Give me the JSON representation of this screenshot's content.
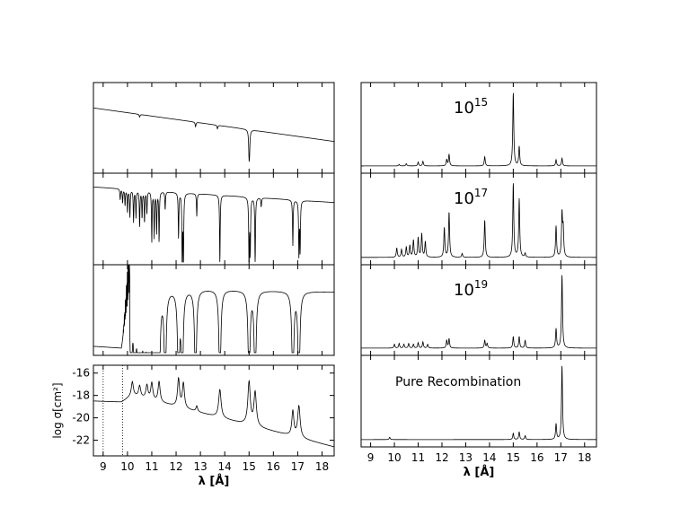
{
  "chart_data": [
    {
      "panel": "left-1",
      "type": "line",
      "xlim": [
        8.6,
        18.5
      ],
      "xlabel": "",
      "ylabel": "",
      "continuum": [
        [
          8.6,
          0.72
        ],
        [
          18.5,
          0.35
        ]
      ],
      "lines": [
        [
          15.0,
          0.25,
          0.04
        ],
        [
          15.02,
          0.18,
          0.04
        ],
        [
          12.8,
          0.05,
          0.04
        ],
        [
          13.7,
          0.04,
          0.04
        ],
        [
          10.5,
          0.03,
          0.04
        ]
      ]
    },
    {
      "panel": "left-2",
      "type": "line",
      "xlim": [
        8.6,
        18.5
      ],
      "continuum": [
        [
          8.6,
          0.85
        ],
        [
          18.5,
          0.68
        ]
      ],
      "lines": [
        [
          9.7,
          0.12,
          0.03
        ],
        [
          9.8,
          0.15,
          0.03
        ],
        [
          9.9,
          0.18,
          0.03
        ],
        [
          10.0,
          0.25,
          0.03
        ],
        [
          10.1,
          0.3,
          0.03
        ],
        [
          10.25,
          0.35,
          0.03
        ],
        [
          10.35,
          0.3,
          0.03
        ],
        [
          10.5,
          0.4,
          0.03
        ],
        [
          10.6,
          0.3,
          0.03
        ],
        [
          10.7,
          0.35,
          0.03
        ],
        [
          10.8,
          0.25,
          0.03
        ],
        [
          11.0,
          0.55,
          0.03
        ],
        [
          11.1,
          0.5,
          0.03
        ],
        [
          11.2,
          0.45,
          0.03
        ],
        [
          11.3,
          0.55,
          0.03
        ],
        [
          11.55,
          0.2,
          0.03
        ],
        [
          12.1,
          0.5,
          0.03
        ],
        [
          12.25,
          0.75,
          0.03
        ],
        [
          12.3,
          0.8,
          0.03
        ],
        [
          12.85,
          0.25,
          0.03
        ],
        [
          13.8,
          0.75,
          0.03
        ],
        [
          15.0,
          0.85,
          0.03
        ],
        [
          15.05,
          0.6,
          0.03
        ],
        [
          15.25,
          0.78,
          0.03
        ],
        [
          15.5,
          0.1,
          0.03
        ],
        [
          16.8,
          0.5,
          0.03
        ],
        [
          17.05,
          0.6,
          0.03
        ],
        [
          17.1,
          0.55,
          0.03
        ]
      ]
    },
    {
      "panel": "left-3",
      "type": "line",
      "xlim": [
        8.6,
        18.5
      ],
      "continuum": [
        [
          8.6,
          0.1
        ],
        [
          9.75,
          0.08
        ],
        [
          10.1,
          0.75
        ],
        [
          18.5,
          0.7
        ]
      ]
    },
    {
      "panel": "left-4",
      "type": "line",
      "xlim": [
        8.6,
        18.5
      ],
      "ylim": [
        -23.4,
        -15.3
      ],
      "xlabel": "λ [Å]",
      "ylabel": "log σ[cm²]",
      "xticks": [
        "9",
        "10",
        "11",
        "12",
        "13",
        "14",
        "15",
        "16",
        "17",
        "18"
      ],
      "yticks": [
        "-16",
        "-18",
        "-20",
        "-22"
      ],
      "dotted_lines_x": [
        9.0,
        9.8
      ],
      "continuum": [
        [
          8.6,
          -18.5
        ],
        [
          9.75,
          -18.6
        ],
        [
          10.2,
          -18.0
        ],
        [
          18.5,
          -22.6
        ]
      ]
    },
    {
      "panel": "right-1",
      "type": "line",
      "xlim": [
        8.6,
        18.5
      ],
      "annotation": "10",
      "annotation_sup": "15",
      "lines": [
        [
          15.0,
          0.95
        ],
        [
          15.25,
          0.25
        ],
        [
          12.3,
          0.15
        ],
        [
          12.2,
          0.08
        ],
        [
          13.8,
          0.12
        ],
        [
          16.8,
          0.08
        ],
        [
          17.05,
          0.1
        ],
        [
          11.0,
          0.05
        ],
        [
          11.2,
          0.06
        ],
        [
          10.5,
          0.03
        ],
        [
          10.2,
          0.02
        ]
      ]
    },
    {
      "panel": "right-2",
      "type": "line",
      "xlim": [
        8.6,
        18.5
      ],
      "annotation": "10",
      "annotation_sup": "17",
      "lines": [
        [
          10.1,
          0.12
        ],
        [
          10.3,
          0.1
        ],
        [
          10.5,
          0.13
        ],
        [
          10.65,
          0.15
        ],
        [
          10.8,
          0.22
        ],
        [
          11.0,
          0.25
        ],
        [
          11.15,
          0.3
        ],
        [
          11.3,
          0.2
        ],
        [
          12.1,
          0.38
        ],
        [
          12.3,
          0.58
        ],
        [
          12.85,
          0.05
        ],
        [
          13.8,
          0.48
        ],
        [
          15.0,
          0.95
        ],
        [
          15.25,
          0.75
        ],
        [
          15.5,
          0.05
        ],
        [
          16.8,
          0.4
        ],
        [
          17.05,
          0.55
        ],
        [
          17.1,
          0.35
        ]
      ]
    },
    {
      "panel": "right-3",
      "type": "line",
      "xlim": [
        8.6,
        18.5
      ],
      "annotation": "10",
      "annotation_sup": "19",
      "lines": [
        [
          10.0,
          0.05
        ],
        [
          10.2,
          0.06
        ],
        [
          10.4,
          0.05
        ],
        [
          10.6,
          0.06
        ],
        [
          10.8,
          0.05
        ],
        [
          11.0,
          0.07
        ],
        [
          11.2,
          0.08
        ],
        [
          11.4,
          0.05
        ],
        [
          12.2,
          0.1
        ],
        [
          12.3,
          0.12
        ],
        [
          13.8,
          0.1
        ],
        [
          13.9,
          0.06
        ],
        [
          15.0,
          0.15
        ],
        [
          15.25,
          0.15
        ],
        [
          15.5,
          0.1
        ],
        [
          16.8,
          0.25
        ],
        [
          17.05,
          0.95
        ]
      ]
    },
    {
      "panel": "right-4",
      "type": "line",
      "xlim": [
        8.6,
        18.5
      ],
      "xlabel": "λ [Å]",
      "xticks": [
        "9",
        "10",
        "11",
        "12",
        "13",
        "14",
        "15",
        "16",
        "17",
        "18"
      ],
      "annotation": "Pure Recombination",
      "lines": [
        [
          9.8,
          0.03
        ],
        [
          15.0,
          0.08
        ],
        [
          15.25,
          0.1
        ],
        [
          15.5,
          0.05
        ],
        [
          16.8,
          0.2
        ],
        [
          17.05,
          0.95
        ]
      ]
    }
  ]
}
